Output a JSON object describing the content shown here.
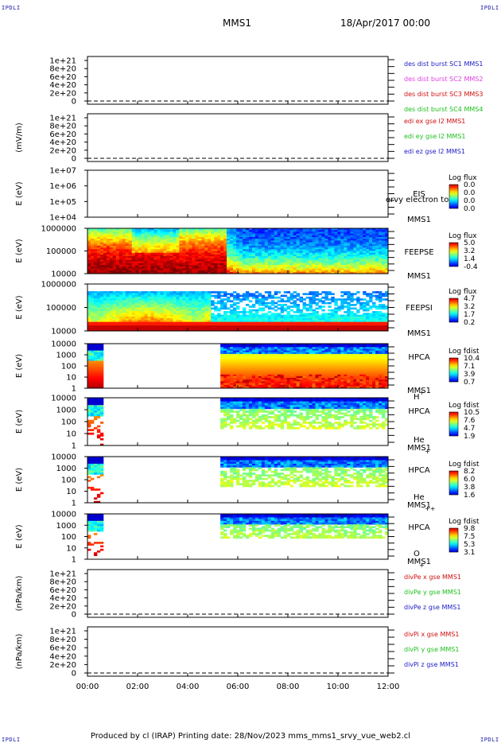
{
  "corner_text": "IPDLI",
  "header": {
    "spacecraft": "MMS1",
    "date": "18/Apr/2017 00:00"
  },
  "footer": "Produced by cl (IRAP)   Printing date: 28/Nov/2023   mms_mms1_srvy_vue_web2.cl",
  "x_axis": {
    "tick_labels": [
      "00:00",
      "02:00",
      "04:00",
      "06:00",
      "08:00",
      "10:00",
      "12:00"
    ],
    "range_hours": [
      0,
      12
    ]
  },
  "panels": [
    {
      "id": "des",
      "kind": "line",
      "ylabel": "",
      "ticks": [
        "1e+21",
        "8e+20",
        "6e+20",
        "4e+20",
        "2e+20",
        "0"
      ],
      "legend": [
        {
          "text": "des dist burst SC1 MMS1",
          "color": "#2020c8"
        },
        {
          "text": "des dist burst SC2 MMS2",
          "color": "#e040e0"
        },
        {
          "text": "des dist burst SC3 MMS3",
          "color": "#d01010"
        },
        {
          "text": "des dist burst SC4 MMS4",
          "color": "#20c020"
        }
      ]
    },
    {
      "id": "edi",
      "kind": "line",
      "ylabel": "(mV/m)",
      "ticks": [
        "1e+21",
        "8e+20",
        "6e+20",
        "4e+20",
        "2e+20",
        "0"
      ],
      "legend": [
        {
          "text": "edi ex gse l2 MMS1",
          "color": "#d01010"
        },
        {
          "text": "edi ey gse l2 MMS1",
          "color": "#20c020"
        },
        {
          "text": "edi ez gse l2 MMS1",
          "color": "#2020c8"
        }
      ]
    },
    {
      "id": "eis",
      "kind": "spec",
      "ylabel": "E (eV)",
      "ticks": [
        "1e+07",
        "1e+06",
        "1e+05",
        "1e+04"
      ],
      "side": [
        "EIS",
        "MMS1"
      ],
      "overlay_text": "ervy electron to",
      "cb_title": "Log flux",
      "cb_ticks": [
        "0.0",
        "0.0",
        "0.0",
        "0.0"
      ]
    },
    {
      "id": "feepse",
      "kind": "spec",
      "ylabel": "E (eV)",
      "ticks": [
        "1000000",
        "100000",
        "10000"
      ],
      "side": [
        "FEEPSE",
        "MMS1"
      ],
      "cb_title": "Log flux",
      "cb_ticks": [
        "5.0",
        "3.2",
        "1.4",
        "-0.4"
      ]
    },
    {
      "id": "feepsi",
      "kind": "spec",
      "ylabel": "E (eV)",
      "ticks": [
        "1000000",
        "100000",
        "10000"
      ],
      "side": [
        "FEEPSI",
        "MMS1"
      ],
      "cb_title": "Log flux",
      "cb_ticks": [
        "4.7",
        "3.2",
        "1.7",
        "0.2"
      ]
    },
    {
      "id": "hpca_h",
      "kind": "spec",
      "ylabel": "E (eV)",
      "ticks": [
        "10000",
        "1000",
        "100",
        "10",
        "1"
      ],
      "side": [
        "HPCA",
        "MMS1"
      ],
      "species": "H",
      "charge": "+",
      "cb_title": "Log fdist",
      "cb_ticks": [
        "10.4",
        "7.1",
        "3.9",
        "0.7"
      ]
    },
    {
      "id": "hpca_he",
      "kind": "spec",
      "ylabel": "E (eV)",
      "ticks": [
        "10000",
        "1000",
        "100",
        "10",
        "1"
      ],
      "side": [
        "HPCA",
        "MMS1"
      ],
      "species": "He",
      "charge": "+",
      "cb_title": "Log fdist",
      "cb_ticks": [
        "10.5",
        "7.6",
        "4.7",
        "1.9"
      ]
    },
    {
      "id": "hpca_hepp",
      "kind": "spec",
      "ylabel": "E (eV)",
      "ticks": [
        "10000",
        "1000",
        "100",
        "10",
        "1"
      ],
      "side": [
        "HPCA",
        "MMS1"
      ],
      "species": "He",
      "charge": "++",
      "cb_title": "Log fdist",
      "cb_ticks": [
        "8.2",
        "6.0",
        "3.8",
        "1.6"
      ]
    },
    {
      "id": "hpca_o",
      "kind": "spec",
      "ylabel": "E (eV)",
      "ticks": [
        "10000",
        "1000",
        "100",
        "10",
        "1"
      ],
      "side": [
        "HPCA",
        "MMS1"
      ],
      "species": "O",
      "charge": "+",
      "cb_title": "Log fdist",
      "cb_ticks": [
        "9.8",
        "7.5",
        "5.3",
        "3.1"
      ]
    },
    {
      "id": "divpe",
      "kind": "line",
      "ylabel": "(nPa/km)",
      "ticks": [
        "1e+21",
        "8e+20",
        "6e+20",
        "4e+20",
        "2e+20",
        "0"
      ],
      "legend": [
        {
          "text": "divPe x gse MMS1",
          "color": "#d01010"
        },
        {
          "text": "divPe y gse MMS1",
          "color": "#20c020"
        },
        {
          "text": "divPe z gse MMS1",
          "color": "#2020c8"
        }
      ]
    },
    {
      "id": "divpi",
      "kind": "line",
      "ylabel": "(nPa/km)",
      "ticks": [
        "1e+21",
        "8e+20",
        "6e+20",
        "4e+20",
        "2e+20",
        "0"
      ],
      "legend": [
        {
          "text": "divPi x gse MMS1",
          "color": "#d01010"
        },
        {
          "text": "divPi y gse MMS1",
          "color": "#20c020"
        },
        {
          "text": "divPi z gse MMS1",
          "color": "#2020c8"
        }
      ]
    }
  ],
  "chart_data": {
    "type": "heatmap",
    "x_range_hours": [
      0,
      12
    ],
    "hpca_data_gap_hours": [
      0.6,
      5.25
    ],
    "feepse_transition_hour": 5.6,
    "line_panels_value": 0
  }
}
